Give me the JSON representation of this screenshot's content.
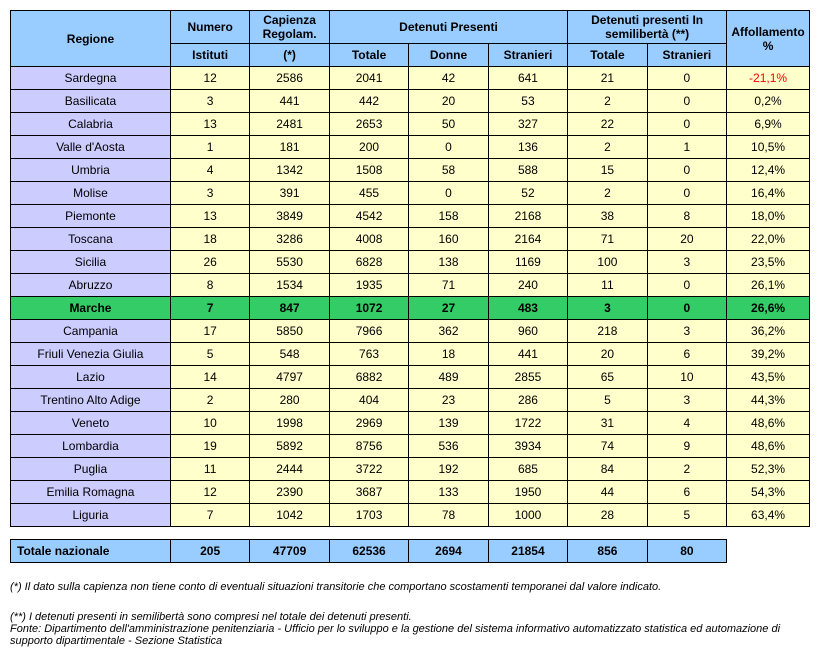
{
  "headers": {
    "regione": "Regione",
    "numero": "Numero",
    "istituti": "Istituti",
    "capienza": "Capienza Regolam.",
    "capienza_note": "(*)",
    "detenuti": "Detenuti Presenti",
    "totale": "Totale",
    "donne": "Donne",
    "stranieri": "Stranieri",
    "semilib": "Detenuti presenti In semilibertà (**)",
    "affoll": "Affollamento %"
  },
  "rows": [
    {
      "regione": "Sardegna",
      "istituti": 12,
      "cap": 2586,
      "tot": 2041,
      "donne": 42,
      "stra": 641,
      "sl_tot": 21,
      "sl_stra": 0,
      "aff": "-21,1%",
      "neg": true
    },
    {
      "regione": "Basilicata",
      "istituti": 3,
      "cap": 441,
      "tot": 442,
      "donne": 20,
      "stra": 53,
      "sl_tot": 2,
      "sl_stra": 0,
      "aff": "0,2%"
    },
    {
      "regione": "Calabria",
      "istituti": 13,
      "cap": 2481,
      "tot": 2653,
      "donne": 50,
      "stra": 327,
      "sl_tot": 22,
      "sl_stra": 0,
      "aff": "6,9%"
    },
    {
      "regione": "Valle d'Aosta",
      "istituti": 1,
      "cap": 181,
      "tot": 200,
      "donne": 0,
      "stra": 136,
      "sl_tot": 2,
      "sl_stra": 1,
      "aff": "10,5%"
    },
    {
      "regione": "Umbria",
      "istituti": 4,
      "cap": 1342,
      "tot": 1508,
      "donne": 58,
      "stra": 588,
      "sl_tot": 15,
      "sl_stra": 0,
      "aff": "12,4%"
    },
    {
      "regione": "Molise",
      "istituti": 3,
      "cap": 391,
      "tot": 455,
      "donne": 0,
      "stra": 52,
      "sl_tot": 2,
      "sl_stra": 0,
      "aff": "16,4%"
    },
    {
      "regione": "Piemonte",
      "istituti": 13,
      "cap": 3849,
      "tot": 4542,
      "donne": 158,
      "stra": 2168,
      "sl_tot": 38,
      "sl_stra": 8,
      "aff": "18,0%"
    },
    {
      "regione": "Toscana",
      "istituti": 18,
      "cap": 3286,
      "tot": 4008,
      "donne": 160,
      "stra": 2164,
      "sl_tot": 71,
      "sl_stra": 20,
      "aff": "22,0%"
    },
    {
      "regione": "Sicilia",
      "istituti": 26,
      "cap": 5530,
      "tot": 6828,
      "donne": 138,
      "stra": 1169,
      "sl_tot": 100,
      "sl_stra": 3,
      "aff": "23,5%"
    },
    {
      "regione": "Abruzzo",
      "istituti": 8,
      "cap": 1534,
      "tot": 1935,
      "donne": 71,
      "stra": 240,
      "sl_tot": 11,
      "sl_stra": 0,
      "aff": "26,1%"
    },
    {
      "regione": "Marche",
      "istituti": 7,
      "cap": 847,
      "tot": 1072,
      "donne": 27,
      "stra": 483,
      "sl_tot": 3,
      "sl_stra": 0,
      "aff": "26,6%",
      "highlight": true
    },
    {
      "regione": "Campania",
      "istituti": 17,
      "cap": 5850,
      "tot": 7966,
      "donne": 362,
      "stra": 960,
      "sl_tot": 218,
      "sl_stra": 3,
      "aff": "36,2%"
    },
    {
      "regione": "Friuli Venezia Giulia",
      "istituti": 5,
      "cap": 548,
      "tot": 763,
      "donne": 18,
      "stra": 441,
      "sl_tot": 20,
      "sl_stra": 6,
      "aff": "39,2%"
    },
    {
      "regione": "Lazio",
      "istituti": 14,
      "cap": 4797,
      "tot": 6882,
      "donne": 489,
      "stra": 2855,
      "sl_tot": 65,
      "sl_stra": 10,
      "aff": "43,5%"
    },
    {
      "regione": "Trentino Alto Adige",
      "istituti": 2,
      "cap": 280,
      "tot": 404,
      "donne": 23,
      "stra": 286,
      "sl_tot": 5,
      "sl_stra": 3,
      "aff": "44,3%"
    },
    {
      "regione": "Veneto",
      "istituti": 10,
      "cap": 1998,
      "tot": 2969,
      "donne": 139,
      "stra": 1722,
      "sl_tot": 31,
      "sl_stra": 4,
      "aff": "48,6%"
    },
    {
      "regione": "Lombardia",
      "istituti": 19,
      "cap": 5892,
      "tot": 8756,
      "donne": 536,
      "stra": 3934,
      "sl_tot": 74,
      "sl_stra": 9,
      "aff": "48,6%"
    },
    {
      "regione": "Puglia",
      "istituti": 11,
      "cap": 2444,
      "tot": 3722,
      "donne": 192,
      "stra": 685,
      "sl_tot": 84,
      "sl_stra": 2,
      "aff": "52,3%"
    },
    {
      "regione": "Emilia Romagna",
      "istituti": 12,
      "cap": 2390,
      "tot": 3687,
      "donne": 133,
      "stra": 1950,
      "sl_tot": 44,
      "sl_stra": 6,
      "aff": "54,3%"
    },
    {
      "regione": "Liguria",
      "istituti": 7,
      "cap": 1042,
      "tot": 1703,
      "donne": 78,
      "stra": 1000,
      "sl_tot": 28,
      "sl_stra": 5,
      "aff": "63,4%"
    }
  ],
  "total": {
    "label": "Totale nazionale",
    "istituti": 205,
    "cap": 47709,
    "tot": 62536,
    "donne": 2694,
    "stra": 21854,
    "sl_tot": 856,
    "sl_stra": 80,
    "aff": ""
  },
  "footnotes": {
    "a": "(*) Il dato sulla capienza non tiene conto di eventuali situazioni transitorie che comportano scostamenti temporanei dal valore indicato.",
    "b": "(**) I detenuti presenti in semilibertà sono compresi nel totale dei detenuti presenti.",
    "c": "Fonte: Dipartimento dell'amministrazione penitenziaria - Ufficio per lo sviluppo e la gestione del sistema informativo automatizzato statistica ed automazione di supporto dipartimentale - Sezione Statistica"
  }
}
